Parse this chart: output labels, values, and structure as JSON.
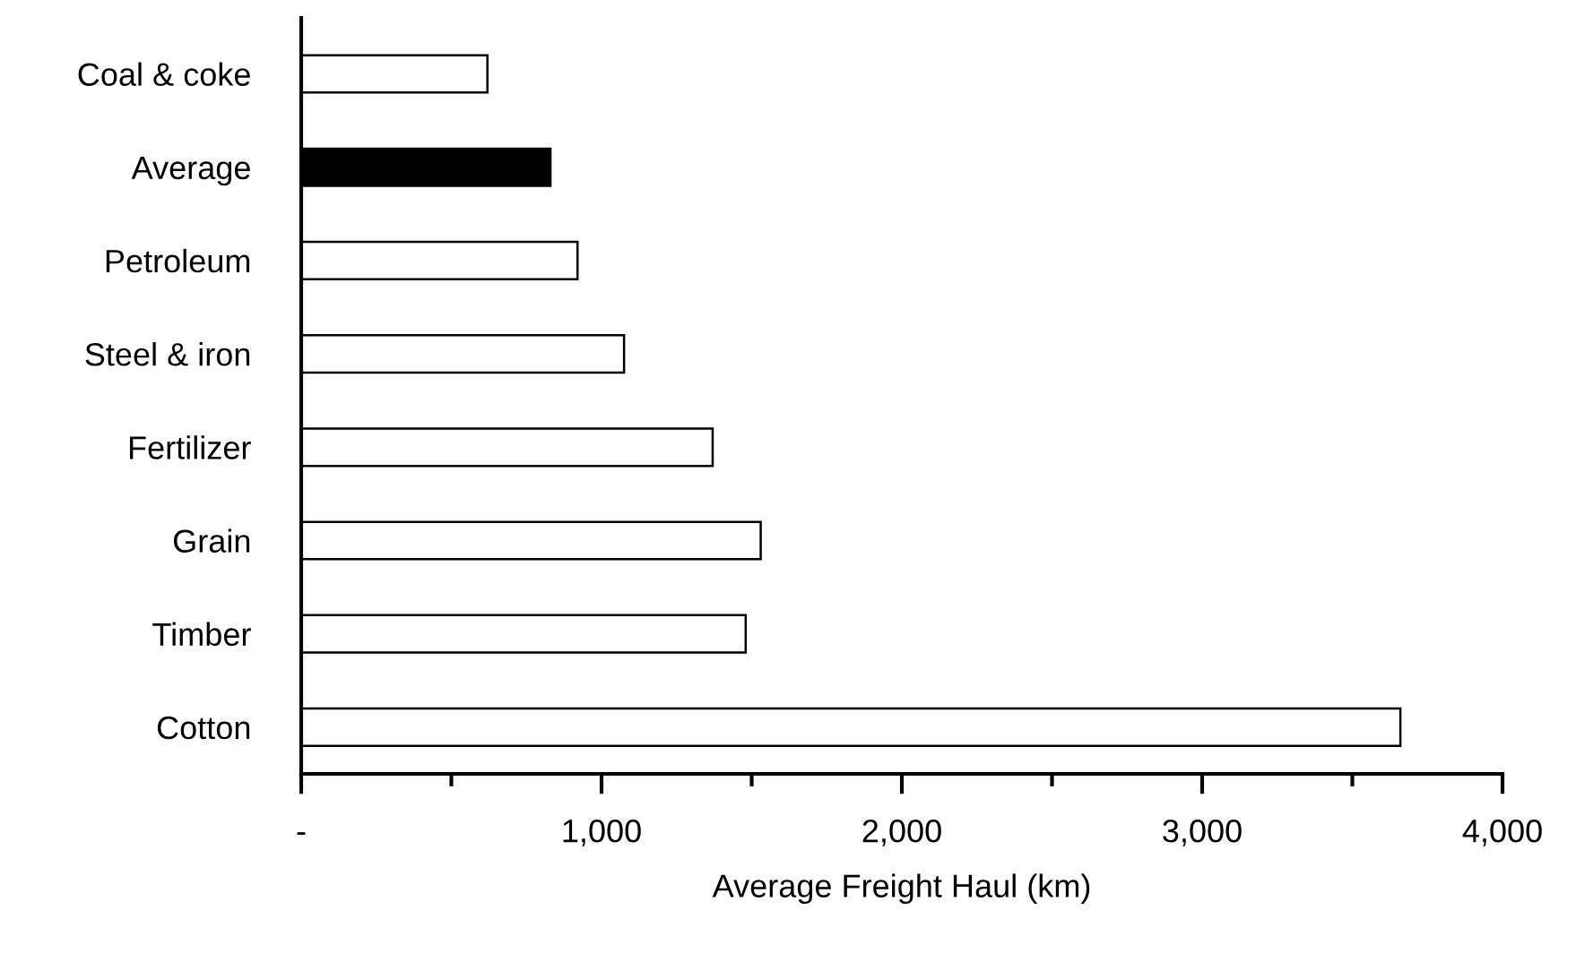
{
  "chart_data": {
    "type": "bar",
    "orientation": "horizontal",
    "xlabel": "Average Freight Haul (km)",
    "categories": [
      "Coal & coke",
      "Average",
      "Petroleum",
      "Steel & iron",
      "Fertilizer",
      "Grain",
      "Timber",
      "Cotton"
    ],
    "values": [
      620,
      830,
      920,
      1075,
      1370,
      1530,
      1480,
      3660
    ],
    "colors": [
      "#ffffff",
      "#000000",
      "#ffffff",
      "#ffffff",
      "#ffffff",
      "#ffffff",
      "#ffffff",
      "#ffffff"
    ],
    "xlim": [
      0,
      4000
    ],
    "xticks": [
      {
        "value": 0,
        "label": "-"
      },
      {
        "value": 500,
        "label": null
      },
      {
        "value": 1000,
        "label": "1,000"
      },
      {
        "value": 1500,
        "label": null
      },
      {
        "value": 2000,
        "label": "2,000"
      },
      {
        "value": 2500,
        "label": null
      },
      {
        "value": 3000,
        "label": "3,000"
      },
      {
        "value": 3500,
        "label": null
      },
      {
        "value": 4000,
        "label": "4,000"
      }
    ],
    "grid": false,
    "legend": false
  }
}
